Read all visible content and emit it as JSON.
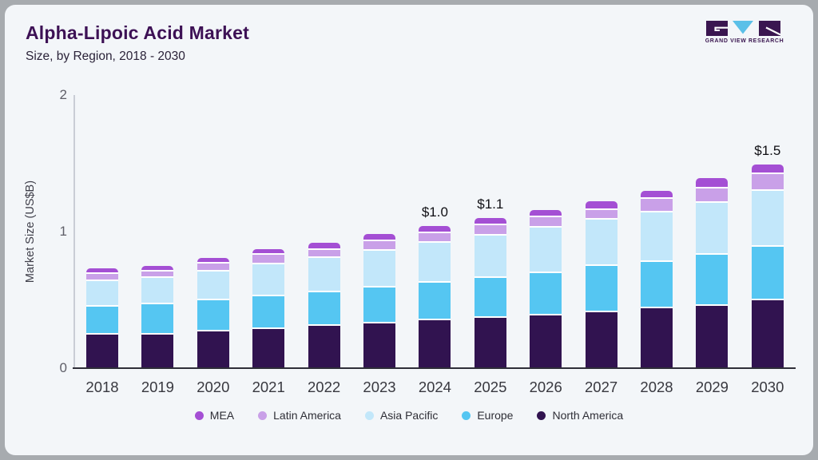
{
  "header": {
    "title": "Alpha-Lipoic Acid Market",
    "subtitle": "Size, by Region, 2018 - 2030"
  },
  "logo": {
    "brand": "GRAND VIEW RESEARCH",
    "purple": "#3a1650",
    "blue": "#5bc0e8"
  },
  "chart_data": {
    "type": "bar",
    "stacked": true,
    "title": "Alpha-Lipoic Acid Market Size, by Region, 2018 - 2030",
    "ylabel": "Market Size (US$B)",
    "ylim": [
      0,
      2
    ],
    "yticks": [
      0,
      1,
      2
    ],
    "grid": false,
    "legend_position": "bottom",
    "categories": [
      "2018",
      "2019",
      "2020",
      "2021",
      "2022",
      "2023",
      "2024",
      "2025",
      "2026",
      "2027",
      "2028",
      "2029",
      "2030"
    ],
    "series": [
      {
        "name": "North America",
        "color": "#311350",
        "values": [
          0.26,
          0.26,
          0.28,
          0.3,
          0.32,
          0.34,
          0.36,
          0.38,
          0.4,
          0.42,
          0.45,
          0.47,
          0.51
        ]
      },
      {
        "name": "Europe",
        "color": "#55c6f2",
        "values": [
          0.2,
          0.22,
          0.23,
          0.24,
          0.25,
          0.26,
          0.28,
          0.29,
          0.31,
          0.34,
          0.34,
          0.37,
          0.39
        ]
      },
      {
        "name": "Asia Pacific",
        "color": "#c2e7fa",
        "values": [
          0.19,
          0.19,
          0.21,
          0.23,
          0.25,
          0.27,
          0.29,
          0.31,
          0.33,
          0.34,
          0.36,
          0.38,
          0.41
        ]
      },
      {
        "name": "Latin America",
        "color": "#c9a0e8",
        "values": [
          0.05,
          0.05,
          0.06,
          0.07,
          0.06,
          0.07,
          0.07,
          0.08,
          0.08,
          0.07,
          0.1,
          0.11,
          0.12
        ]
      },
      {
        "name": "MEA",
        "color": "#a44fd4",
        "values": [
          0.03,
          0.03,
          0.03,
          0.03,
          0.04,
          0.04,
          0.04,
          0.04,
          0.04,
          0.05,
          0.05,
          0.06,
          0.06
        ]
      }
    ],
    "totals": [
      0.73,
      0.75,
      0.81,
      0.87,
      0.92,
      0.98,
      1.04,
      1.1,
      1.16,
      1.22,
      1.3,
      1.39,
      1.49
    ],
    "value_labels": [
      {
        "category": "2024",
        "label": "$1.0"
      },
      {
        "category": "2025",
        "label": "$1.1"
      },
      {
        "category": "2030",
        "label": "$1.5"
      }
    ],
    "legend_order": [
      "MEA",
      "Latin America",
      "Asia Pacific",
      "Europe",
      "North America"
    ]
  }
}
